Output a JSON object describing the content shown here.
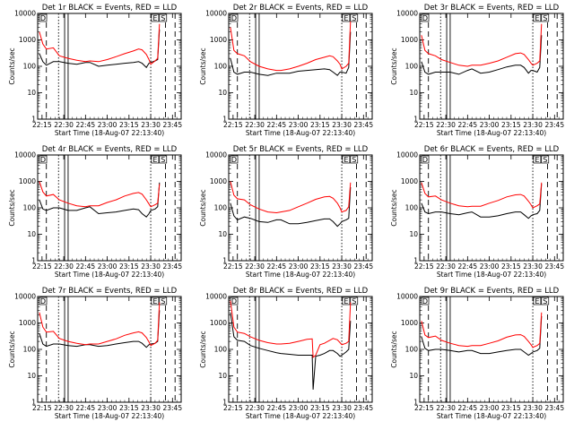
{
  "x_tick_labels": [
    "22:15",
    "22:30",
    "22:45",
    "23:00",
    "23:15",
    "23:30",
    "23:45"
  ],
  "y_tick_labels": [
    "1",
    "10",
    "100",
    "1000",
    "10000"
  ],
  "xlabel": "Start Time (18-Aug-07 22:13:40)",
  "ylabel": "Counts/sec",
  "markers": {
    "left": "D",
    "right": "E",
    "right2": "S"
  },
  "series_colors": {
    "events": "#000000",
    "lld": "#ff0000"
  },
  "chart_data": [
    {
      "type": "line",
      "title": "Det 1r BLACK = Events, RED = LLD",
      "xlim": [
        22.2,
        23.85
      ],
      "ylim": [
        1,
        10000
      ],
      "yscale": "log",
      "series": [
        {
          "name": "BLACK = Events",
          "x": [
            22.22,
            22.26,
            22.3,
            22.38,
            22.45,
            22.55,
            22.65,
            22.75,
            22.8,
            22.9,
            23.0,
            23.1,
            23.2,
            23.3,
            23.36,
            23.4,
            23.45,
            23.48,
            23.5,
            23.55,
            23.58,
            23.6
          ],
          "y": [
            300,
            150,
            110,
            150,
            150,
            130,
            120,
            140,
            140,
            100,
            110,
            120,
            130,
            140,
            150,
            130,
            90,
            130,
            140,
            160,
            180,
            2500
          ]
        },
        {
          "name": "RED = LLD",
          "x": [
            22.22,
            22.26,
            22.3,
            22.38,
            22.45,
            22.55,
            22.65,
            22.75,
            22.8,
            22.9,
            23.0,
            23.1,
            23.2,
            23.3,
            23.36,
            23.4,
            23.45,
            23.48,
            23.5,
            23.55,
            23.58,
            23.6
          ],
          "y": [
            2000,
            700,
            450,
            500,
            250,
            200,
            170,
            150,
            160,
            150,
            180,
            230,
            300,
            380,
            450,
            420,
            280,
            180,
            120,
            160,
            200,
            4000
          ]
        }
      ]
    },
    {
      "type": "line",
      "title": "Det 2r BLACK = Events, RED = LLD",
      "xlim": [
        22.2,
        23.85
      ],
      "ylim": [
        1,
        10000
      ],
      "yscale": "log",
      "series": [
        {
          "name": "BLACK = Events",
          "x": [
            22.22,
            22.26,
            22.3,
            22.38,
            22.45,
            22.55,
            22.65,
            22.75,
            22.8,
            22.9,
            23.0,
            23.1,
            23.2,
            23.3,
            23.36,
            23.4,
            23.45,
            23.48,
            23.5,
            23.55,
            23.58,
            23.6
          ],
          "y": [
            200,
            60,
            50,
            60,
            60,
            50,
            45,
            55,
            55,
            55,
            65,
            70,
            75,
            80,
            75,
            60,
            45,
            60,
            60,
            55,
            90,
            2000
          ]
        },
        {
          "name": "RED = LLD",
          "x": [
            22.22,
            22.26,
            22.3,
            22.38,
            22.45,
            22.55,
            22.65,
            22.75,
            22.8,
            22.9,
            23.0,
            23.1,
            23.2,
            23.3,
            23.36,
            23.4,
            23.45,
            23.48,
            23.5,
            23.55,
            23.58,
            23.6
          ],
          "y": [
            3000,
            400,
            300,
            250,
            150,
            100,
            80,
            70,
            70,
            80,
            100,
            130,
            180,
            220,
            250,
            230,
            160,
            120,
            80,
            100,
            130,
            5000
          ]
        }
      ]
    },
    {
      "type": "line",
      "title": "Det 3r BLACK = Events, RED = LLD",
      "xlim": [
        22.2,
        23.85
      ],
      "ylim": [
        1,
        10000
      ],
      "yscale": "log",
      "series": [
        {
          "name": "BLACK = Events",
          "x": [
            22.22,
            22.26,
            22.3,
            22.38,
            22.45,
            22.55,
            22.65,
            22.75,
            22.8,
            22.9,
            23.0,
            23.1,
            23.2,
            23.3,
            23.36,
            23.4,
            23.45,
            23.48,
            23.5,
            23.55,
            23.58,
            23.6
          ],
          "y": [
            150,
            60,
            50,
            60,
            60,
            60,
            50,
            70,
            80,
            55,
            60,
            75,
            95,
            110,
            110,
            90,
            55,
            70,
            70,
            60,
            90,
            1500
          ]
        },
        {
          "name": "RED = LLD",
          "x": [
            22.22,
            22.26,
            22.3,
            22.38,
            22.45,
            22.55,
            22.65,
            22.75,
            22.8,
            22.9,
            23.0,
            23.1,
            23.2,
            23.3,
            23.36,
            23.4,
            23.45,
            23.48,
            23.5,
            23.55,
            23.58,
            23.6
          ],
          "y": [
            1500,
            400,
            300,
            250,
            180,
            140,
            110,
            100,
            110,
            110,
            130,
            160,
            220,
            300,
            320,
            280,
            180,
            130,
            110,
            130,
            160,
            4000
          ]
        }
      ]
    },
    {
      "type": "line",
      "title": "Det 4r BLACK = Events, RED = LLD",
      "xlim": [
        22.2,
        23.85
      ],
      "ylim": [
        1,
        10000
      ],
      "yscale": "log",
      "series": [
        {
          "name": "BLACK = Events",
          "x": [
            22.22,
            22.26,
            22.3,
            22.38,
            22.45,
            22.55,
            22.65,
            22.75,
            22.8,
            22.9,
            23.0,
            23.1,
            23.2,
            23.3,
            23.36,
            23.4,
            23.45,
            23.48,
            23.5,
            23.55,
            23.58,
            23.6
          ],
          "y": [
            200,
            90,
            80,
            100,
            100,
            80,
            80,
            100,
            110,
            60,
            65,
            70,
            80,
            90,
            85,
            60,
            45,
            60,
            80,
            90,
            110,
            900
          ]
        },
        {
          "name": "RED = LLD",
          "x": [
            22.22,
            22.26,
            22.3,
            22.38,
            22.45,
            22.55,
            22.65,
            22.75,
            22.8,
            22.9,
            23.0,
            23.1,
            23.2,
            23.3,
            23.36,
            23.4,
            23.45,
            23.48,
            23.5,
            23.55,
            23.58,
            23.6
          ],
          "y": [
            1000,
            400,
            280,
            320,
            200,
            150,
            120,
            110,
            120,
            120,
            160,
            200,
            280,
            350,
            380,
            330,
            200,
            140,
            110,
            130,
            150,
            800
          ]
        }
      ]
    },
    {
      "type": "line",
      "title": "Det 5r BLACK = Events, RED = LLD",
      "xlim": [
        22.2,
        23.85
      ],
      "ylim": [
        1,
        10000
      ],
      "yscale": "log",
      "series": [
        {
          "name": "BLACK = Events",
          "x": [
            22.22,
            22.26,
            22.3,
            22.38,
            22.45,
            22.55,
            22.65,
            22.75,
            22.8,
            22.9,
            23.0,
            23.1,
            23.2,
            23.3,
            23.36,
            23.4,
            23.45,
            23.48,
            23.5,
            23.55,
            23.58,
            23.6
          ],
          "y": [
            150,
            50,
            35,
            45,
            40,
            30,
            28,
            35,
            35,
            25,
            25,
            28,
            33,
            38,
            38,
            30,
            20,
            25,
            30,
            35,
            40,
            600
          ]
        },
        {
          "name": "RED = LLD",
          "x": [
            22.22,
            22.26,
            22.3,
            22.38,
            22.45,
            22.55,
            22.65,
            22.75,
            22.8,
            22.9,
            23.0,
            23.1,
            23.2,
            23.3,
            23.36,
            23.4,
            23.45,
            23.48,
            23.5,
            23.55,
            23.58,
            23.6
          ],
          "y": [
            1000,
            300,
            220,
            200,
            130,
            90,
            70,
            65,
            70,
            80,
            110,
            150,
            210,
            260,
            270,
            230,
            150,
            100,
            70,
            80,
            110,
            900
          ]
        }
      ]
    },
    {
      "type": "line",
      "title": "Det 6r BLACK = Events, RED = LLD",
      "xlim": [
        22.2,
        23.85
      ],
      "ylim": [
        1,
        10000
      ],
      "yscale": "log",
      "series": [
        {
          "name": "BLACK = Events",
          "x": [
            22.22,
            22.26,
            22.3,
            22.38,
            22.45,
            22.55,
            22.65,
            22.75,
            22.8,
            22.9,
            23.0,
            23.1,
            23.2,
            23.3,
            23.36,
            23.4,
            23.45,
            23.48,
            23.5,
            23.55,
            23.58,
            23.6
          ],
          "y": [
            150,
            70,
            60,
            70,
            70,
            60,
            55,
            65,
            70,
            45,
            45,
            50,
            60,
            70,
            70,
            55,
            40,
            50,
            55,
            60,
            80,
            800
          ]
        },
        {
          "name": "RED = LLD",
          "x": [
            22.22,
            22.26,
            22.3,
            22.38,
            22.45,
            22.55,
            22.65,
            22.75,
            22.8,
            22.9,
            23.0,
            23.1,
            23.2,
            23.3,
            23.36,
            23.4,
            23.45,
            23.48,
            23.5,
            23.55,
            23.58,
            23.6
          ],
          "y": [
            900,
            350,
            260,
            280,
            200,
            150,
            120,
            110,
            115,
            115,
            150,
            190,
            260,
            310,
            320,
            280,
            180,
            130,
            100,
            120,
            140,
            900
          ]
        }
      ]
    },
    {
      "type": "line",
      "title": "Det 7r BLACK = Events, RED = LLD",
      "xlim": [
        22.2,
        23.85
      ],
      "ylim": [
        1,
        10000
      ],
      "yscale": "log",
      "series": [
        {
          "name": "BLACK = Events",
          "x": [
            22.22,
            22.26,
            22.3,
            22.38,
            22.45,
            22.55,
            22.65,
            22.75,
            22.8,
            22.9,
            23.0,
            23.1,
            23.2,
            23.3,
            23.36,
            23.4,
            23.45,
            23.48,
            23.5,
            23.55,
            23.58,
            23.6
          ],
          "y": [
            400,
            160,
            130,
            160,
            160,
            140,
            130,
            150,
            150,
            130,
            140,
            160,
            180,
            200,
            200,
            170,
            120,
            150,
            160,
            170,
            200,
            3000
          ]
        },
        {
          "name": "RED = LLD",
          "x": [
            22.22,
            22.26,
            22.3,
            22.38,
            22.45,
            22.55,
            22.65,
            22.75,
            22.8,
            22.9,
            23.0,
            23.1,
            23.2,
            23.3,
            23.36,
            23.4,
            23.45,
            23.48,
            23.5,
            23.55,
            23.58,
            23.6
          ],
          "y": [
            2500,
            700,
            450,
            480,
            260,
            200,
            170,
            150,
            160,
            160,
            200,
            250,
            340,
            420,
            460,
            420,
            280,
            190,
            140,
            170,
            220,
            6000
          ]
        }
      ]
    },
    {
      "type": "line",
      "title": "Det 8r BLACK = Events, RED = LLD",
      "xlim": [
        22.2,
        23.85
      ],
      "ylim": [
        1,
        10000
      ],
      "yscale": "log",
      "series": [
        {
          "name": "BLACK = Events",
          "x": [
            22.22,
            22.26,
            22.3,
            22.38,
            22.45,
            22.55,
            22.65,
            22.75,
            22.8,
            22.9,
            23.0,
            23.1,
            23.16,
            23.17,
            23.2,
            23.25,
            23.3,
            23.36,
            23.4,
            23.45,
            23.48,
            23.5,
            23.55,
            23.58,
            23.6
          ],
          "y": [
            2500,
            300,
            220,
            200,
            140,
            110,
            90,
            75,
            70,
            65,
            60,
            60,
            60,
            3,
            55,
            60,
            70,
            90,
            90,
            70,
            55,
            60,
            80,
            100,
            1200
          ]
        },
        {
          "name": "RED = LLD",
          "x": [
            22.22,
            22.26,
            22.3,
            22.38,
            22.45,
            22.55,
            22.65,
            22.75,
            22.8,
            22.9,
            23.0,
            23.1,
            23.16,
            23.17,
            23.2,
            23.25,
            23.3,
            23.36,
            23.4,
            23.45,
            23.48,
            23.5,
            23.55,
            23.58,
            23.6
          ],
          "y": [
            7000,
            700,
            450,
            400,
            300,
            220,
            180,
            160,
            160,
            170,
            200,
            240,
            250,
            50,
            60,
            150,
            170,
            220,
            260,
            230,
            180,
            150,
            170,
            200,
            6000
          ]
        }
      ]
    },
    {
      "type": "line",
      "title": "Det 9r BLACK = Events, RED = LLD",
      "xlim": [
        22.2,
        23.85
      ],
      "ylim": [
        1,
        10000
      ],
      "yscale": "log",
      "series": [
        {
          "name": "BLACK = Events",
          "x": [
            22.22,
            22.26,
            22.3,
            22.38,
            22.45,
            22.55,
            22.65,
            22.75,
            22.8,
            22.9,
            23.0,
            23.1,
            23.2,
            23.3,
            23.36,
            23.4,
            23.45,
            23.48,
            23.5,
            23.55,
            23.58,
            23.6
          ],
          "y": [
            300,
            110,
            90,
            100,
            100,
            90,
            80,
            90,
            90,
            70,
            70,
            80,
            90,
            100,
            100,
            80,
            60,
            70,
            80,
            90,
            110,
            1800
          ]
        },
        {
          "name": "RED = LLD",
          "x": [
            22.22,
            22.26,
            22.3,
            22.38,
            22.45,
            22.55,
            22.65,
            22.75,
            22.8,
            22.9,
            23.0,
            23.1,
            23.2,
            23.3,
            23.36,
            23.4,
            23.45,
            23.48,
            23.5,
            23.55,
            23.58,
            23.6
          ],
          "y": [
            1200,
            350,
            280,
            320,
            220,
            170,
            140,
            130,
            140,
            140,
            170,
            210,
            290,
            350,
            360,
            310,
            200,
            150,
            120,
            140,
            170,
            2500
          ]
        }
      ]
    }
  ]
}
